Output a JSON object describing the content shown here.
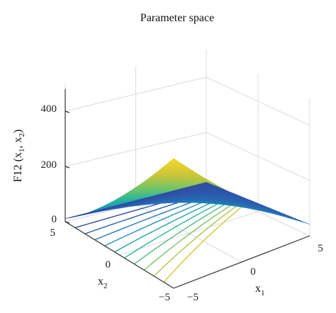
{
  "chart_data": {
    "type": "surface",
    "title": "Parameter space",
    "xlabel": "x",
    "xlabel_sub": "1",
    "ylabel": "x",
    "ylabel_sub": "2",
    "zlabel_parts": [
      "F12 (x",
      "1",
      ", x",
      "2",
      ")"
    ],
    "x_ticks": [
      "−5",
      "0",
      "5"
    ],
    "y_ticks": [
      "−5",
      "0",
      "5"
    ],
    "z_ticks": [
      "0",
      "200",
      "400"
    ],
    "xlim": [
      -5,
      5
    ],
    "ylim": [
      -5,
      5
    ],
    "zlim": [
      0,
      500
    ],
    "surface_corners": [
      {
        "x1": -5,
        "x2": 5,
        "z": 20
      },
      {
        "x1": 5,
        "x2": 5,
        "z": 35
      },
      {
        "x1": 5,
        "x2": -5,
        "z": 75
      },
      {
        "x1": -5,
        "x2": -5,
        "z": 470
      }
    ],
    "contour_levels": 10,
    "colormap": [
      "#3b2f8f",
      "#2a5fb0",
      "#1e8fbf",
      "#22b3a3",
      "#6cc46a",
      "#c9c53a",
      "#f5d929"
    ],
    "grid": true
  }
}
